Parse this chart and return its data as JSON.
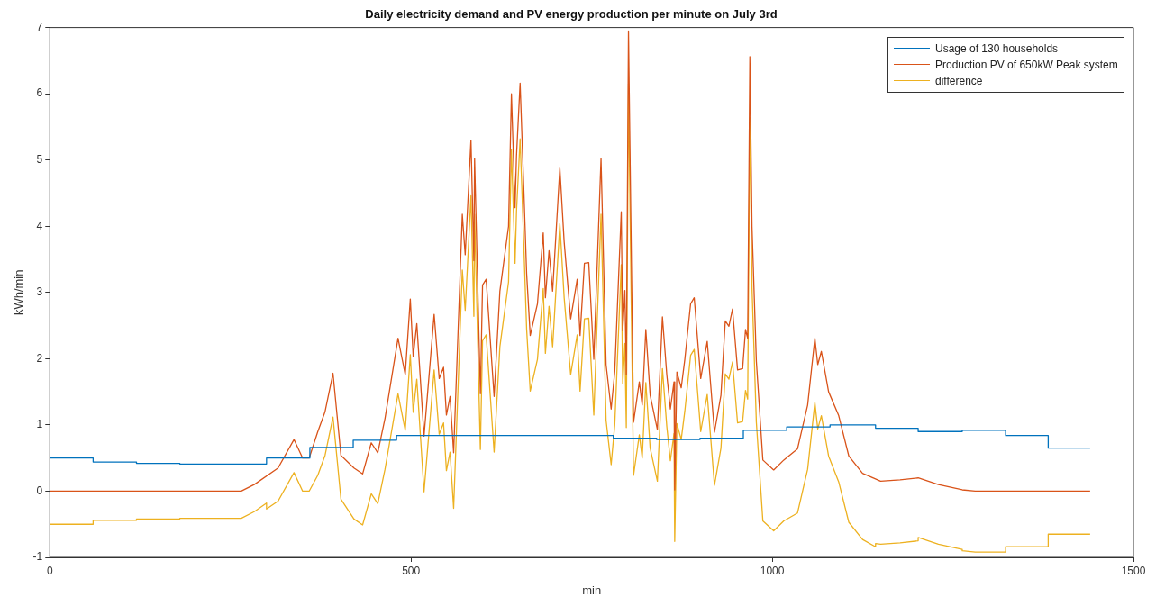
{
  "chart_data": {
    "type": "line",
    "title": "Daily electricity demand and PV energy production per minute on July 3rd",
    "xlabel": "min",
    "ylabel": "kWh/min",
    "xlim": [
      0,
      1500
    ],
    "xticks": [
      0,
      500,
      1000,
      1500
    ],
    "ylim": [
      -1,
      7
    ],
    "yticks": [
      -1,
      0,
      1,
      2,
      3,
      4,
      5,
      6,
      7
    ],
    "grid": false,
    "legend": "top right",
    "marker": "none",
    "line_style": "solid",
    "series": [
      {
        "name": "Usage of 130 households",
        "color": "#0072bd",
        "type": "step",
        "x": [
          0,
          60,
          120,
          180,
          300,
          360,
          420,
          480,
          780,
          840,
          900,
          960,
          1020,
          1080,
          1143,
          1202,
          1263,
          1323,
          1382,
          1440
        ],
        "values": [
          0.5,
          0.44,
          0.42,
          0.41,
          0.5,
          0.66,
          0.77,
          0.84,
          0.8,
          0.78,
          0.8,
          0.92,
          0.97,
          1.0,
          0.95,
          0.9,
          0.92,
          0.84,
          0.65,
          0.65
        ]
      },
      {
        "name": "Production PV of 650kW Peak system",
        "color": "#d95319",
        "type": "line",
        "x": [
          0,
          265,
          283,
          316,
          338,
          350,
          359,
          371,
          381,
          392,
          403,
          421,
          433,
          445,
          454,
          464,
          482,
          492,
          499,
          503,
          508,
          518,
          532,
          539,
          545,
          549,
          554,
          559,
          571,
          575,
          583,
          587,
          588,
          596,
          599,
          604,
          615,
          623,
          635,
          639,
          644,
          646,
          651,
          656,
          660,
          665,
          675,
          683,
          686,
          691,
          696,
          706,
          712,
          721,
          730,
          734,
          740,
          746,
          753,
          763,
          770,
          777,
          782,
          791,
          793,
          796,
          798,
          801,
          805,
          808,
          816,
          820,
          825,
          831,
          841,
          848,
          854,
          859,
          864,
          865,
          868,
          874,
          879,
          887,
          892,
          901,
          910,
          920,
          929,
          935,
          940,
          945,
          952,
          959,
          963,
          966,
          969,
          972,
          978,
          987,
          1002,
          1016,
          1035,
          1049,
          1059,
          1063,
          1068,
          1078,
          1092,
          1106,
          1125,
          1150,
          1177,
          1202,
          1230,
          1263,
          1281,
          1440
        ],
        "values": [
          0,
          0,
          0.1,
          0.35,
          0.78,
          0.5,
          0.5,
          0.9,
          1.2,
          1.78,
          0.54,
          0.35,
          0.26,
          0.73,
          0.58,
          1.1,
          2.31,
          1.76,
          2.9,
          2.03,
          2.53,
          0.83,
          2.67,
          1.7,
          1.87,
          1.15,
          1.43,
          0.58,
          4.18,
          3.57,
          5.3,
          3.48,
          5.02,
          1.47,
          3.11,
          3.2,
          1.43,
          3.02,
          4.0,
          6.0,
          4.28,
          5.06,
          6.16,
          4.6,
          3.29,
          2.35,
          2.83,
          3.9,
          2.92,
          3.63,
          3.02,
          4.88,
          3.76,
          2.6,
          3.2,
          2.35,
          3.44,
          3.45,
          1.99,
          5.02,
          1.91,
          1.24,
          1.8,
          4.22,
          2.42,
          3.03,
          1.76,
          6.95,
          3.49,
          1.04,
          1.65,
          1.3,
          2.44,
          1.45,
          0.93,
          2.63,
          1.76,
          1.24,
          1.65,
          0.02,
          1.8,
          1.56,
          1.99,
          2.83,
          2.92,
          1.7,
          2.26,
          0.89,
          1.45,
          2.57,
          2.49,
          2.75,
          1.83,
          1.85,
          2.44,
          2.31,
          6.56,
          3.99,
          1.96,
          0.47,
          0.32,
          0.47,
          0.64,
          1.3,
          2.31,
          1.91,
          2.11,
          1.5,
          1.14,
          0.53,
          0.27,
          0.15,
          0.17,
          0.2,
          0.1,
          0.02,
          0,
          0
        ]
      },
      {
        "name": "difference",
        "color": "#edb120",
        "type": "line",
        "x": [
          0,
          60,
          60,
          120,
          120,
          180,
          180,
          265,
          283,
          300,
          300,
          316,
          338,
          350,
          359,
          371,
          381,
          392,
          403,
          421,
          433,
          445,
          454,
          464,
          482,
          492,
          499,
          503,
          508,
          518,
          532,
          539,
          545,
          549,
          554,
          559,
          571,
          575,
          583,
          587,
          588,
          596,
          599,
          604,
          615,
          623,
          635,
          639,
          644,
          646,
          651,
          656,
          660,
          665,
          675,
          683,
          686,
          691,
          696,
          706,
          712,
          721,
          730,
          734,
          740,
          746,
          753,
          763,
          770,
          777,
          782,
          791,
          793,
          796,
          798,
          801,
          805,
          808,
          816,
          820,
          825,
          831,
          841,
          848,
          854,
          859,
          864,
          865,
          868,
          874,
          879,
          887,
          892,
          901,
          910,
          920,
          929,
          935,
          940,
          945,
          952,
          959,
          963,
          966,
          969,
          972,
          978,
          987,
          1002,
          1016,
          1035,
          1049,
          1059,
          1063,
          1068,
          1078,
          1092,
          1106,
          1125,
          1143,
          1143,
          1150,
          1177,
          1202,
          1202,
          1230,
          1263,
          1263,
          1281,
          1323,
          1323,
          1382,
          1382,
          1440
        ],
        "values": [
          -0.5,
          -0.5,
          -0.44,
          -0.44,
          -0.42,
          -0.42,
          -0.41,
          -0.41,
          -0.31,
          -0.18,
          -0.27,
          -0.15,
          0.28,
          0.0,
          0.0,
          0.24,
          0.54,
          1.12,
          -0.12,
          -0.42,
          -0.51,
          -0.04,
          -0.19,
          0.33,
          1.47,
          0.92,
          2.06,
          1.19,
          1.69,
          -0.01,
          1.83,
          0.86,
          1.03,
          0.31,
          0.59,
          -0.26,
          3.34,
          2.73,
          4.46,
          2.64,
          4.18,
          0.63,
          2.27,
          2.36,
          0.59,
          2.18,
          3.16,
          5.16,
          3.44,
          4.22,
          5.32,
          3.76,
          2.45,
          1.51,
          1.99,
          3.06,
          2.08,
          2.79,
          2.18,
          4.04,
          2.92,
          1.76,
          2.36,
          1.51,
          2.6,
          2.61,
          1.15,
          4.18,
          1.07,
          0.4,
          1.0,
          3.42,
          1.62,
          2.23,
          0.96,
          6.15,
          2.69,
          0.24,
          0.85,
          0.5,
          1.64,
          0.65,
          0.15,
          1.85,
          0.98,
          0.46,
          0.87,
          -0.76,
          1.02,
          0.78,
          1.21,
          2.05,
          2.14,
          0.9,
          1.46,
          0.09,
          0.65,
          1.77,
          1.69,
          1.95,
          1.03,
          1.05,
          1.52,
          1.39,
          5.64,
          3.07,
          1.04,
          -0.45,
          -0.6,
          -0.45,
          -0.33,
          0.33,
          1.34,
          0.94,
          1.14,
          0.53,
          0.14,
          -0.47,
          -0.73,
          -0.84,
          -0.79,
          -0.8,
          -0.78,
          -0.75,
          -0.7,
          -0.8,
          -0.88,
          -0.9,
          -0.92,
          -0.92,
          -0.84,
          -0.84,
          -0.65,
          -0.65
        ]
      }
    ]
  }
}
